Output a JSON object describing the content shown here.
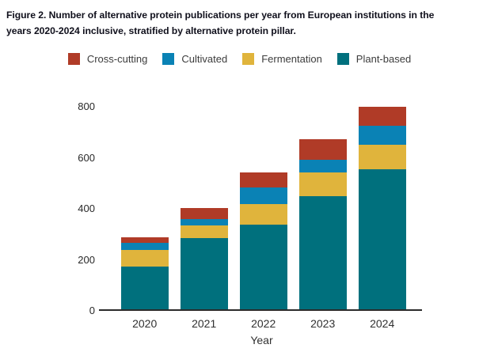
{
  "title": {
    "line1": "Figure 2. Number of alternative protein publications per year from European institutions in the",
    "line2": "years 2020-2024 inclusive, stratified by alternative protein pillar."
  },
  "legend": [
    {
      "label": "Cross-cutting",
      "color": "#b03b27"
    },
    {
      "label": "Cultivated",
      "color": "#0a82b5"
    },
    {
      "label": "Fermentation",
      "color": "#e0b43c"
    },
    {
      "label": "Plant-based",
      "color": "#00707d"
    }
  ],
  "chart_data": {
    "type": "bar",
    "stacked": true,
    "title": "Number of alternative protein publications per year from European institutions, 2020-2024, stratified by alternative protein pillar",
    "categories": [
      "2020",
      "2021",
      "2022",
      "2023",
      "2024"
    ],
    "series": [
      {
        "name": "Plant-based",
        "color": "#00707d",
        "values": [
          175,
          286,
          338,
          449,
          555
        ]
      },
      {
        "name": "Fermentation",
        "color": "#e0b43c",
        "values": [
          65,
          50,
          80,
          95,
          95
        ]
      },
      {
        "name": "Cultivated",
        "color": "#0a82b5",
        "values": [
          26,
          23,
          67,
          47,
          75
        ]
      },
      {
        "name": "Cross-cutting",
        "color": "#b03b27",
        "values": [
          22,
          45,
          57,
          82,
          75
        ]
      }
    ],
    "totals": [
      288,
      404,
      542,
      673,
      800
    ],
    "xlabel": "Year",
    "ylabel": "",
    "ylim": [
      0,
      800
    ],
    "yticks": [
      0,
      200,
      400,
      600,
      800
    ],
    "legend_position": "top",
    "grid": false
  }
}
